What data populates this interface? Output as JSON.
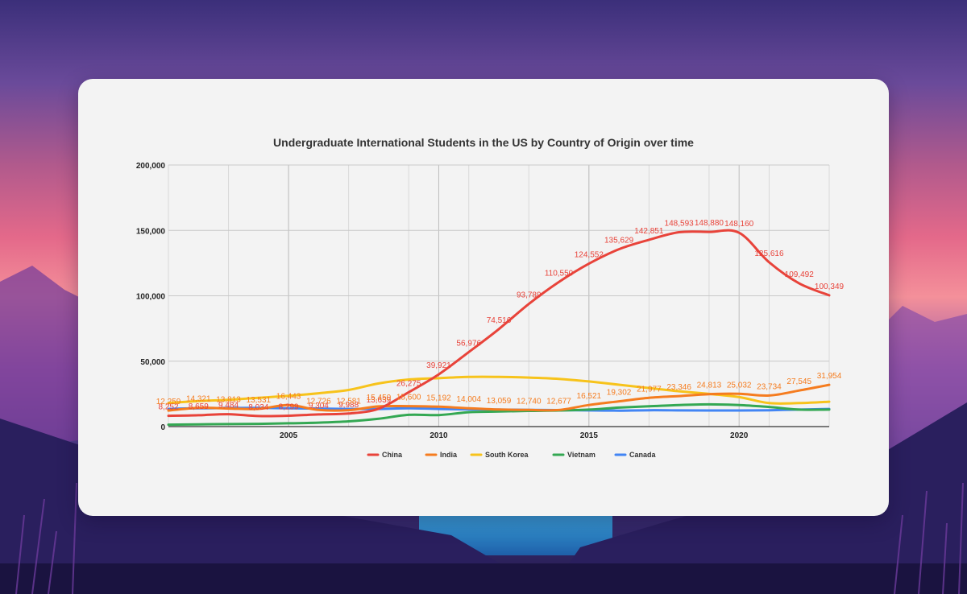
{
  "colors": {
    "china": "#e8433a",
    "india": "#f57c1f",
    "south_korea": "#f7c31b",
    "vietnam": "#34a853",
    "canada": "#4285f4"
  },
  "chart_data": {
    "type": "line",
    "title": "Undergraduate International Students in the US by Country of Origin over time",
    "xlabel": "",
    "ylabel": "",
    "xlim": [
      2001,
      2023
    ],
    "ylim": [
      0,
      200000
    ],
    "y_ticks": [
      0,
      50000,
      100000,
      150000,
      200000
    ],
    "y_tick_labels": [
      "0",
      "50,000",
      "100,000",
      "150,000",
      "200,000"
    ],
    "x_ticks": [
      2005,
      2010,
      2015,
      2020
    ],
    "x_tick_labels": [
      "2005",
      "2010",
      "2015",
      "2020"
    ],
    "legend_position": "bottom",
    "grid": true,
    "x": [
      2001,
      2002,
      2003,
      2004,
      2005,
      2006,
      2007,
      2008,
      2009,
      2010,
      2011,
      2012,
      2013,
      2014,
      2015,
      2016,
      2017,
      2018,
      2019,
      2020,
      2021,
      2022,
      2023
    ],
    "series": [
      {
        "name": "China",
        "key": "china",
        "values": [
          8252,
          8659,
          9484,
          8034,
          8299,
          9304,
          9988,
          13639,
          26275,
          39921,
          56976,
          74516,
          93789,
          110550,
          124552,
          135629,
          142851,
          148593,
          148880,
          148160,
          125616,
          109492,
          100349
        ],
        "labels": [
          "8,252",
          "8,659",
          "9,484",
          "8,034",
          "8,299",
          "9,304",
          "9,988",
          "13,639",
          "26,275",
          "39,921",
          "56,976",
          "74,516",
          "93,789",
          "110,550",
          "124,552",
          "135,629",
          "142,851",
          "148,593",
          "148,880",
          "148,160",
          "125,616",
          "109,492",
          "100,349"
        ]
      },
      {
        "name": "India",
        "key": "india",
        "values": [
          12259,
          14321,
          13813,
          13531,
          16443,
          12726,
          12581,
          15450,
          15600,
          15192,
          14004,
          13059,
          12740,
          12677,
          16521,
          19302,
          21977,
          23346,
          24813,
          25032,
          23734,
          27545,
          31954
        ],
        "labels": [
          "12,259",
          "14,321",
          "13,813",
          "13,531",
          "16,443",
          "12,726",
          "12,581",
          "15,450",
          "15,600",
          "15,192",
          "14,004",
          "13,059",
          "12,740",
          "12,677",
          "16,521",
          "19,302",
          "21,977",
          "23,346",
          "24,813",
          "25,032",
          "23,734",
          "27,545",
          "31,954"
        ]
      },
      {
        "name": "South Korea",
        "key": "south_korea",
        "values": [
          18000,
          19500,
          20500,
          22000,
          23500,
          25500,
          28000,
          33000,
          36000,
          37000,
          38000,
          38000,
          37500,
          36500,
          34500,
          32000,
          29500,
          27000,
          25000,
          22500,
          18000,
          18000,
          19000
        ]
      },
      {
        "name": "Vietnam",
        "key": "vietnam",
        "values": [
          1500,
          1700,
          1900,
          2100,
          2500,
          3000,
          4000,
          6000,
          9000,
          8800,
          11000,
          11500,
          12000,
          12300,
          13000,
          14500,
          15500,
          16500,
          17000,
          16500,
          15000,
          13000,
          13000
        ]
      },
      {
        "name": "Canada",
        "key": "canada",
        "values": [
          13500,
          14000,
          14200,
          14300,
          14000,
          13800,
          13500,
          13500,
          14000,
          13500,
          13200,
          13000,
          12800,
          12600,
          12400,
          12200,
          12500,
          12400,
          12300,
          12300,
          12500,
          13000,
          13500
        ]
      }
    ]
  }
}
